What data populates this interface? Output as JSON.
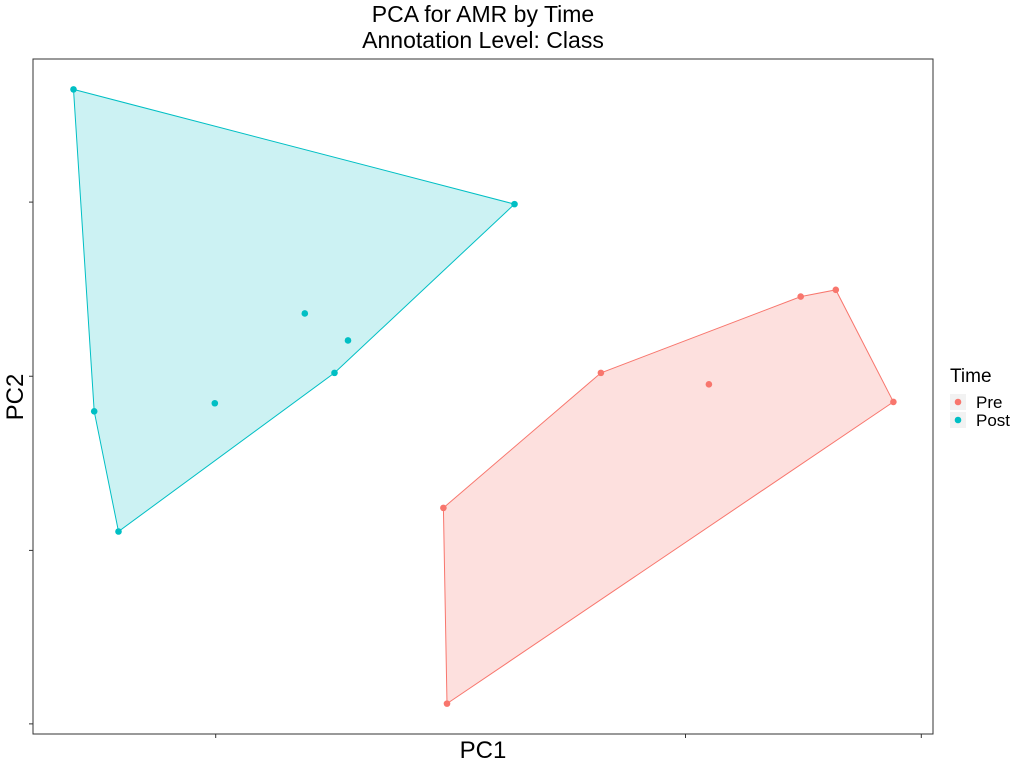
{
  "chart_data": {
    "type": "scatter",
    "title": "PCA for AMR by Time",
    "subtitle": "Annotation Level: Class",
    "xlabel": "PC1",
    "ylabel": "PC2",
    "xlim": [
      0,
      100
    ],
    "ylim": [
      0,
      100
    ],
    "grid": false,
    "tick_labels_visible": false,
    "legend": {
      "title": "Time",
      "position": "right"
    },
    "series": [
      {
        "name": "Pre",
        "color": "#F8766D",
        "hull_fill": "#FDE0DE",
        "points": [
          {
            "x": 45.6,
            "y": 33.5
          },
          {
            "x": 46.0,
            "y": 4.5
          },
          {
            "x": 63.1,
            "y": 53.5
          },
          {
            "x": 75.1,
            "y": 51.8
          },
          {
            "x": 85.3,
            "y": 64.8
          },
          {
            "x": 89.2,
            "y": 65.8
          },
          {
            "x": 95.6,
            "y": 49.2
          }
        ],
        "hull": [
          0,
          2,
          4,
          5,
          6,
          1
        ]
      },
      {
        "name": "Post",
        "color": "#00BFC4",
        "hull_fill": "#CCF2F3",
        "points": [
          {
            "x": 4.5,
            "y": 95.5
          },
          {
            "x": 53.5,
            "y": 78.5
          },
          {
            "x": 30.2,
            "y": 62.3
          },
          {
            "x": 35.0,
            "y": 58.3
          },
          {
            "x": 33.5,
            "y": 53.5
          },
          {
            "x": 20.2,
            "y": 49.0
          },
          {
            "x": 6.8,
            "y": 47.8
          },
          {
            "x": 9.5,
            "y": 30.0
          }
        ],
        "hull": [
          0,
          1,
          4,
          7,
          6
        ]
      }
    ],
    "x_ticks": [
      20.3,
      72.5,
      98.7
    ],
    "y_ticks": [
      1.5,
      27.2,
      53.0,
      78.8
    ]
  }
}
